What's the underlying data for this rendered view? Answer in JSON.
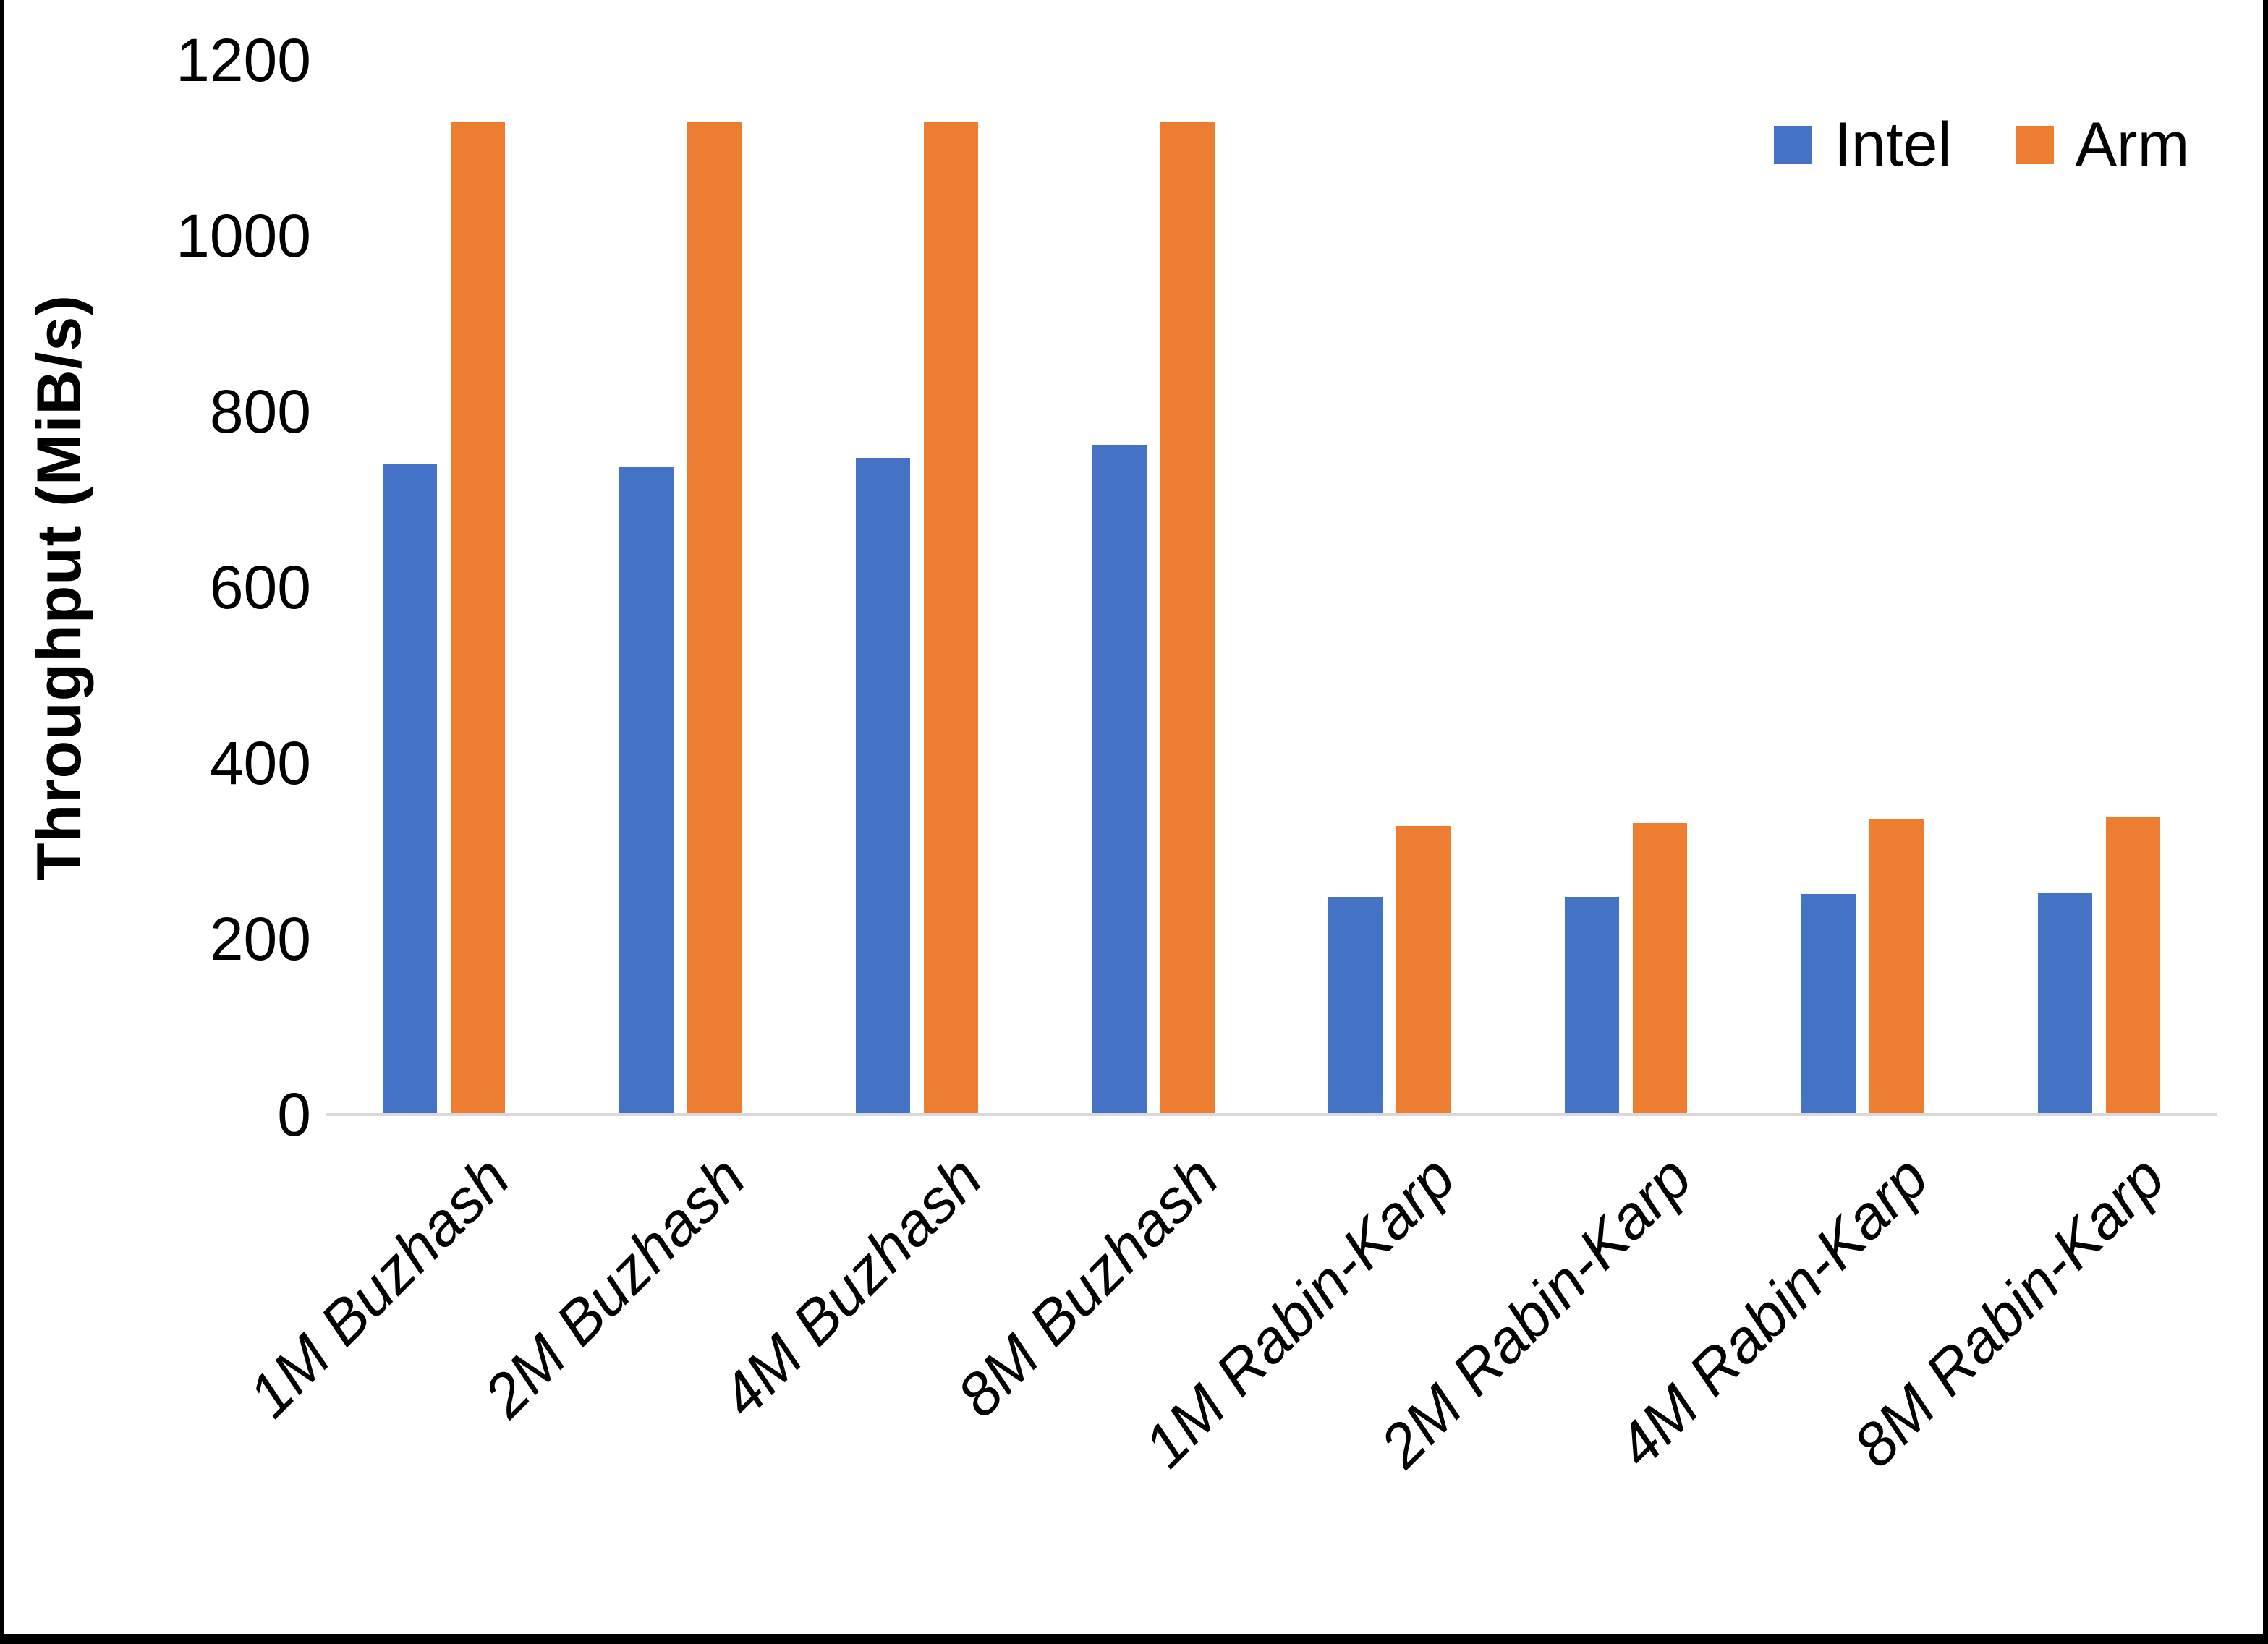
{
  "chart_data": {
    "type": "bar",
    "title": "",
    "categories": [
      "1M Buzhash",
      "2M Buzhash",
      "4M Buzhash",
      "8M Buzhash",
      "1M Rabin-Karp",
      "2M Rabin-Karp",
      "4M Rabin-Karp",
      "8M Rabin-Karp"
    ],
    "series": [
      {
        "name": "Intel",
        "color": "#4472C4",
        "values": [
          740,
          737,
          747,
          762,
          248,
          248,
          251,
          252
        ]
      },
      {
        "name": "Arm",
        "color": "#ED7D31",
        "values": [
          1130,
          1130,
          1130,
          1130,
          328,
          332,
          336,
          338
        ]
      }
    ],
    "xlabel": "",
    "ylabel": "Throughput (MiB/s)",
    "ylim": [
      0,
      1200
    ],
    "ytick_step": 200,
    "yticks": [
      "1200",
      "1000",
      "800",
      "600",
      "400",
      "200",
      "0"
    ],
    "grid": false,
    "legend_position": "top-right"
  },
  "colors": {
    "intel": "#4472C4",
    "arm": "#ED7D31",
    "axis_line": "#D9D9D9",
    "text": "#000000",
    "frame": "#000000"
  }
}
